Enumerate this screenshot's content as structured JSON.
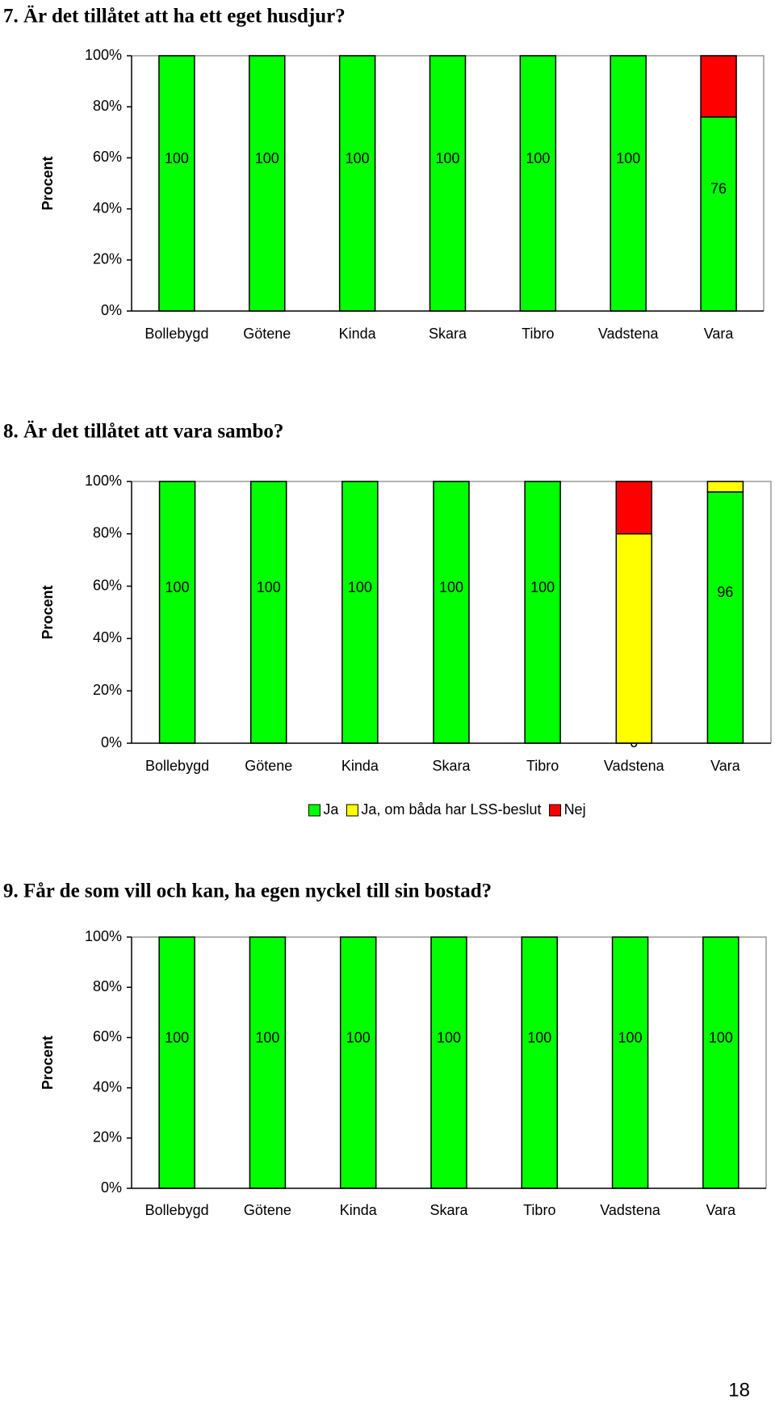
{
  "chart_data": [
    {
      "type": "stacked-bar",
      "title": "7. Är det tillåtet att ha ett eget husdjur?",
      "ylabel": "Procent",
      "categories": [
        "Bollebygd",
        "Götene",
        "Kinda",
        "Skara",
        "Tibro",
        "Vadstena",
        "Vara"
      ],
      "series": [
        {
          "color": "#00ff00",
          "values": [
            100,
            100,
            100,
            100,
            100,
            100,
            76
          ],
          "show_labels": true
        },
        {
          "color": "#ff0000",
          "values": [
            0,
            0,
            0,
            0,
            0,
            0,
            24
          ]
        }
      ],
      "ylim": [
        0,
        100
      ],
      "yticks": [
        {
          "value": 0,
          "label": "0%"
        },
        {
          "value": 20,
          "label": "20%"
        },
        {
          "value": 40,
          "label": "40%"
        },
        {
          "value": 60,
          "label": "60%"
        },
        {
          "value": 80,
          "label": "80%"
        },
        {
          "value": 100,
          "label": "100%"
        }
      ]
    },
    {
      "type": "stacked-bar",
      "title": "8. Är det tillåtet att vara sambo?",
      "ylabel": "Procent",
      "categories": [
        "Bollebygd",
        "Götene",
        "Kinda",
        "Skara",
        "Tibro",
        "Vadstena",
        "Vara"
      ],
      "series": [
        {
          "name": "Ja",
          "color": "#00ff00",
          "values": [
            100,
            100,
            100,
            100,
            100,
            0,
            96
          ],
          "show_labels": true
        },
        {
          "name": "Ja, om båda har LSS-beslut",
          "color": "#ffff00",
          "values": [
            0,
            0,
            0,
            0,
            0,
            80,
            4
          ]
        },
        {
          "name": "Nej",
          "color": "#ff0000",
          "values": [
            0,
            0,
            0,
            0,
            0,
            20,
            0
          ]
        }
      ],
      "legend": "bottom",
      "ylim": [
        0,
        100
      ],
      "yticks": [
        {
          "value": 0,
          "label": "0%"
        },
        {
          "value": 20,
          "label": "20%"
        },
        {
          "value": 40,
          "label": "40%"
        },
        {
          "value": 60,
          "label": "60%"
        },
        {
          "value": 80,
          "label": "80%"
        },
        {
          "value": 100,
          "label": "100%"
        }
      ]
    },
    {
      "type": "stacked-bar",
      "title": "9. Får de som vill och kan, ha egen nyckel till sin bostad?",
      "ylabel": "Procent",
      "categories": [
        "Bollebygd",
        "Götene",
        "Kinda",
        "Skara",
        "Tibro",
        "Vadstena",
        "Vara"
      ],
      "series": [
        {
          "color": "#00ff00",
          "values": [
            100,
            100,
            100,
            100,
            100,
            100,
            100
          ],
          "show_labels": true
        }
      ],
      "ylim": [
        0,
        100
      ],
      "yticks": [
        {
          "value": 0,
          "label": "0%"
        },
        {
          "value": 20,
          "label": "20%"
        },
        {
          "value": 40,
          "label": "40%"
        },
        {
          "value": 60,
          "label": "60%"
        },
        {
          "value": 80,
          "label": "80%"
        },
        {
          "value": 100,
          "label": "100%"
        }
      ]
    }
  ],
  "page_number": "18"
}
